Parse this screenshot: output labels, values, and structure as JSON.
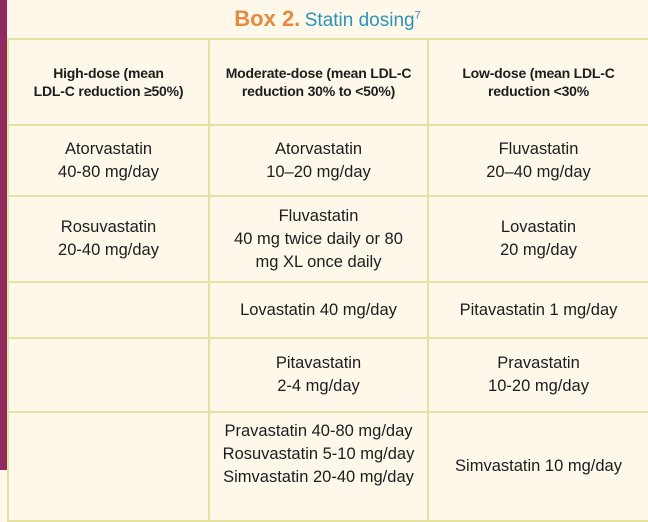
{
  "title": {
    "box_label": "Box 2.",
    "text": "Statin dosing",
    "superscript": "7"
  },
  "colors": {
    "left_bar": "#8e2a5d",
    "title_box": "#e58a3c",
    "title_text": "#2e93b8",
    "grid": "#e6e1a0",
    "background": "#fdf8ea"
  },
  "table": {
    "headers": [
      [
        "High-dose (mean",
        "LDL-C reduction ≥50%)"
      ],
      [
        "Moderate-dose (mean LDL-C",
        "reduction 30% to <50%)"
      ],
      [
        "Low-dose (mean LDL-C",
        "reduction <30%"
      ]
    ],
    "rows": [
      [
        [
          "Atorvastatin",
          "40-80 mg/day"
        ],
        [
          "Atorvastatin",
          "10–20 mg/day"
        ],
        [
          "Fluvastatin",
          "20–40 mg/day"
        ]
      ],
      [
        [
          "Rosuvastatin",
          "20-40 mg/day"
        ],
        [
          "Fluvastatin",
          "40 mg twice daily or 80",
          "mg XL once daily"
        ],
        [
          "Lovastatin",
          "20 mg/day"
        ]
      ],
      [
        [],
        [
          "Lovastatin 40 mg/day"
        ],
        [
          "Pitavastatin 1 mg/day"
        ]
      ],
      [
        [],
        [
          "Pitavastatin",
          "2-4 mg/day"
        ],
        [
          "Pravastatin",
          "10-20 mg/day"
        ]
      ],
      [
        [],
        [
          "Pravastatin 40-80 mg/day",
          "Rosuvastatin 5-10 mg/day",
          "Simvastatin 20-40 mg/day"
        ],
        [
          "Simvastatin 10 mg/day"
        ]
      ]
    ]
  }
}
